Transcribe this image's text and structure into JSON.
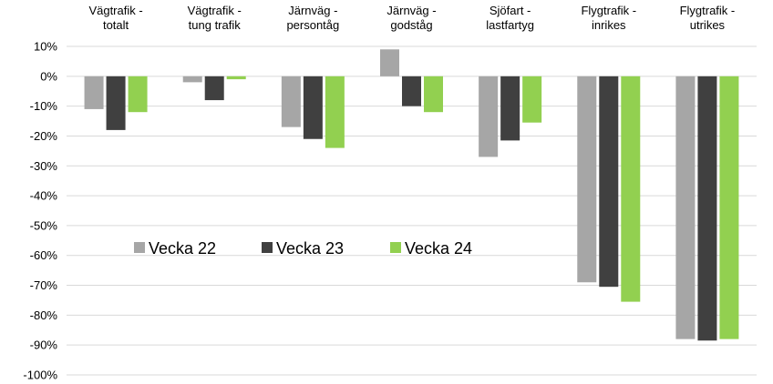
{
  "chart_data": {
    "type": "bar",
    "categories": [
      [
        "Vägtrafik -",
        "totalt"
      ],
      [
        "Vägtrafik -",
        "tung trafik"
      ],
      [
        "Järnväg -",
        "persontåg"
      ],
      [
        "Järnväg -",
        "godståg"
      ],
      [
        "Sjöfart -",
        "lastfartyg"
      ],
      [
        "Flygtrafik -",
        "inrikes"
      ],
      [
        "Flygtrafik -",
        "utrikes"
      ]
    ],
    "series": [
      {
        "name": "Vecka 22",
        "color": "#a6a6a6",
        "values": [
          -11,
          -2,
          -17,
          9,
          -27,
          -69,
          -88
        ]
      },
      {
        "name": "Vecka 23",
        "color": "#404040",
        "values": [
          -18,
          -8,
          -21,
          -10,
          -21.5,
          -70.5,
          -88.5
        ]
      },
      {
        "name": "Vecka 24",
        "color": "#92d050",
        "values": [
          -12,
          -1,
          -24,
          -12,
          -15.5,
          -75.5,
          -88
        ]
      }
    ],
    "ylim": [
      -100,
      10
    ],
    "yticks": [
      10,
      0,
      -10,
      -20,
      -30,
      -40,
      -50,
      -60,
      -70,
      -80,
      -90,
      -100
    ],
    "ytick_labels": [
      "10%",
      "0%",
      "-10%",
      "-20%",
      "-30%",
      "-40%",
      "-50%",
      "-60%",
      "-70%",
      "-80%",
      "-90%",
      "-100%"
    ],
    "grid": true,
    "legend_position": "center-left",
    "title": "",
    "xlabel": "",
    "ylabel": ""
  }
}
